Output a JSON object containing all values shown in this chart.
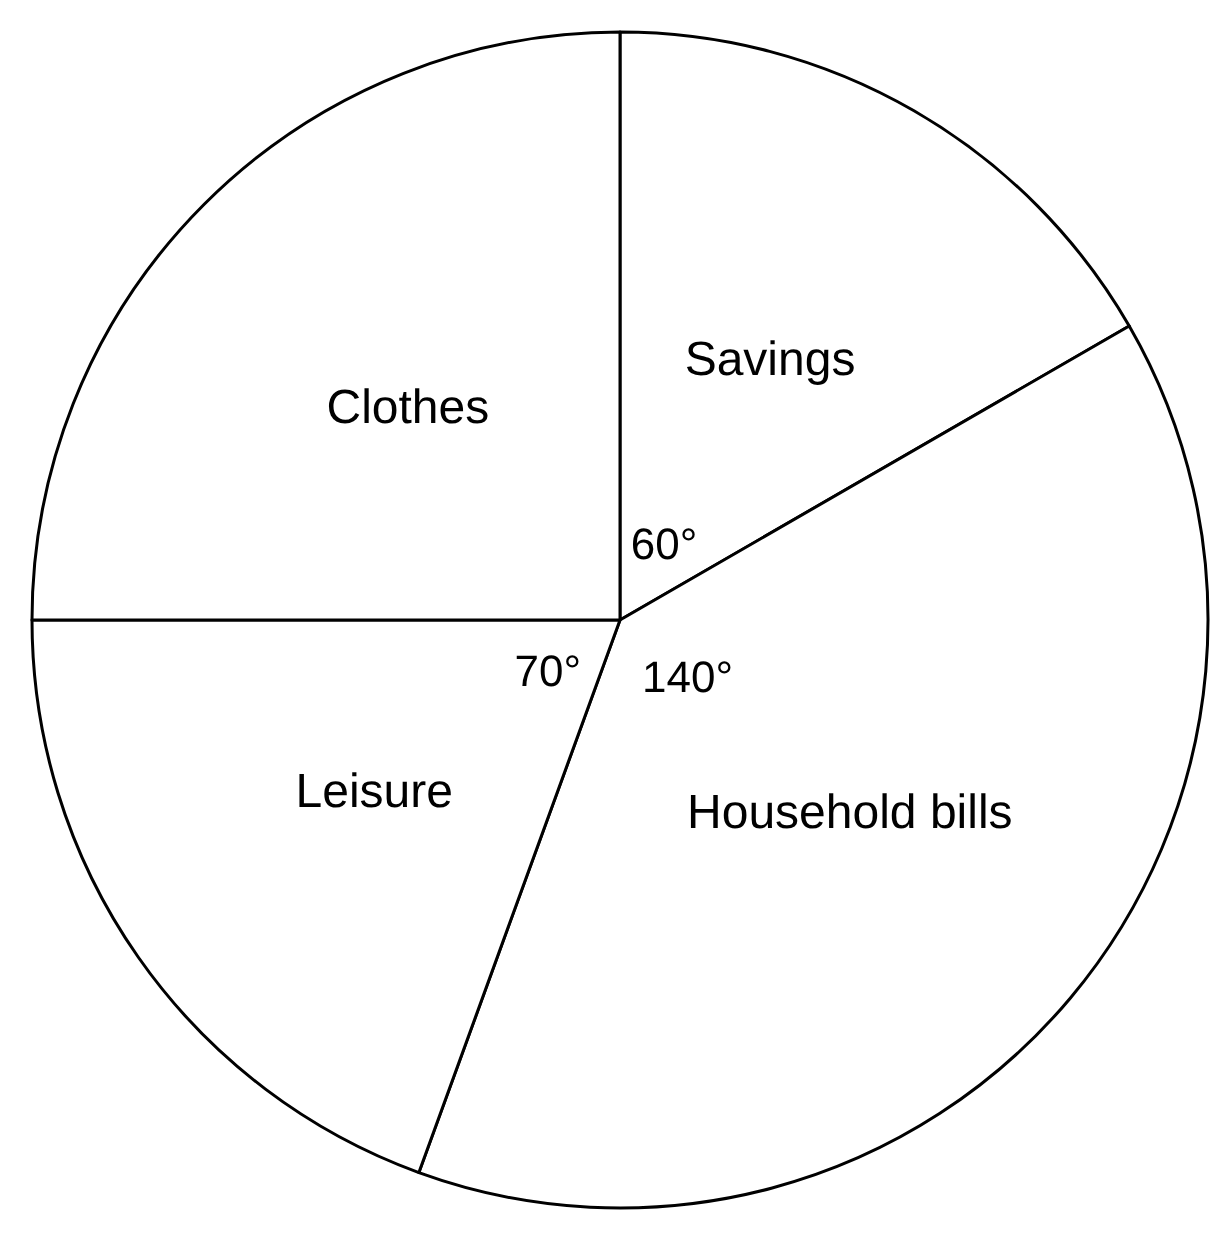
{
  "chart_data": {
    "type": "pie",
    "categories": [
      "Savings",
      "Household bills",
      "Leisure",
      "Clothes"
    ],
    "values": [
      60,
      140,
      70,
      90
    ],
    "colors": [
      "#ffffff",
      "#ffffff",
      "#ffffff",
      "#ffffff"
    ],
    "value_labels": [
      "60°",
      "140°",
      "70°",
      null
    ]
  }
}
